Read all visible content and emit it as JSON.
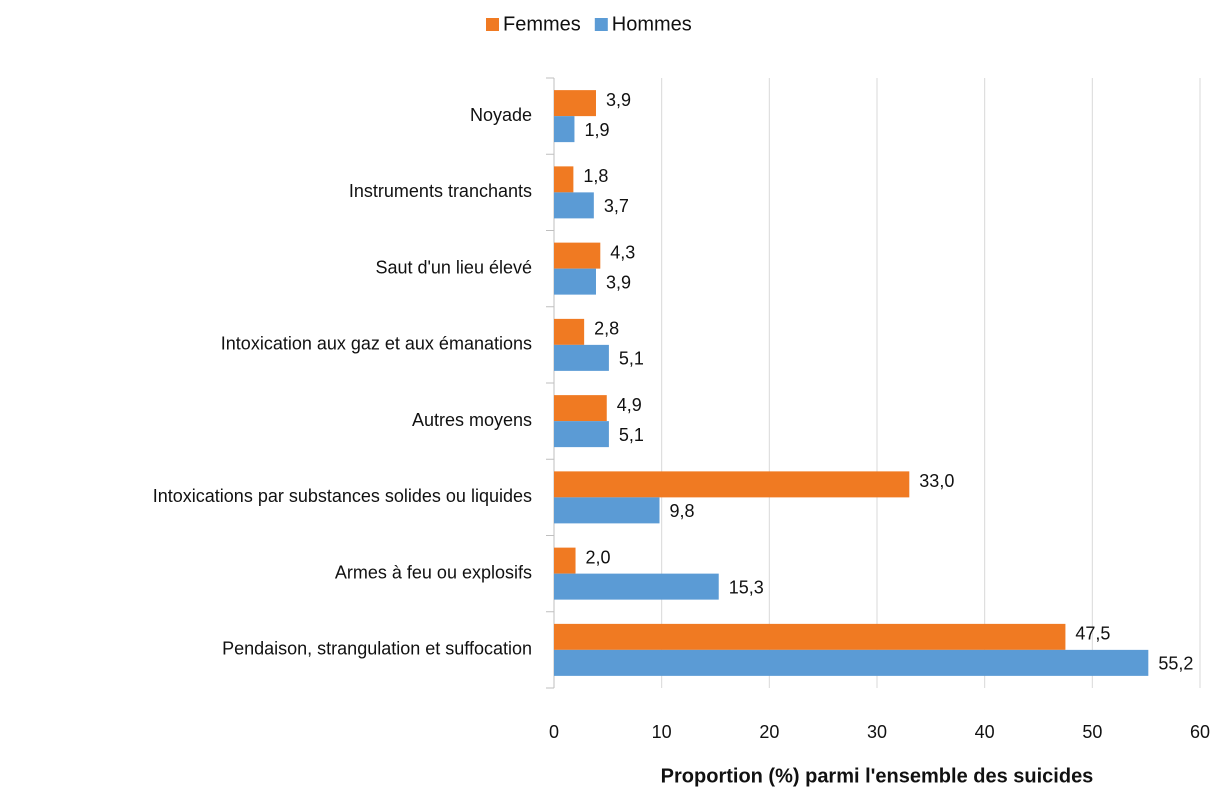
{
  "chart_data": {
    "type": "bar",
    "orientation": "horizontal",
    "x_label": "Proportion (%) parmi l'ensemble des suicides",
    "categories": [
      "Noyade",
      "Instruments tranchants",
      "Saut d'un lieu élevé",
      "Intoxication aux gaz et aux émanations",
      "Autres moyens",
      "Intoxications par substances solides ou liquides",
      "Armes à feu ou explosifs",
      "Pendaison, strangulation et suffocation"
    ],
    "series": [
      {
        "name": "Femmes",
        "color": "#f07a22",
        "values": [
          3.9,
          1.8,
          4.3,
          2.8,
          4.9,
          33.0,
          2.0,
          47.5
        ],
        "value_labels": [
          "3,9",
          "1,8",
          "4,3",
          "2,8",
          "4,9",
          "33,0",
          "2,0",
          "47,5"
        ]
      },
      {
        "name": "Hommes",
        "color": "#5b9bd5",
        "values": [
          1.9,
          3.7,
          3.9,
          5.1,
          5.1,
          9.8,
          15.3,
          55.2
        ],
        "value_labels": [
          "1,9",
          "3,7",
          "3,9",
          "5,1",
          "5,1",
          "9,8",
          "15,3",
          "55,2"
        ]
      }
    ],
    "xlim": [
      0,
      60
    ],
    "xticks": [
      0,
      10,
      20,
      30,
      40,
      50,
      60
    ],
    "grid": true,
    "legend": "top"
  }
}
